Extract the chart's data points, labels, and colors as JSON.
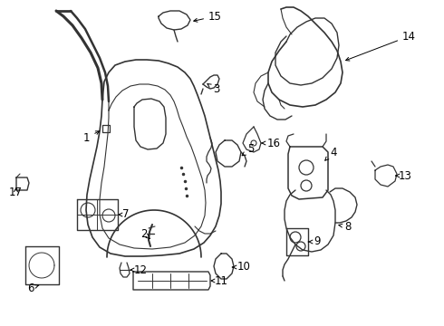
{
  "bg_color": "#ffffff",
  "line_color": "#333333",
  "label_color": "#000000",
  "lw": 1.0,
  "fig_w": 4.9,
  "fig_h": 3.6,
  "dpi": 100
}
